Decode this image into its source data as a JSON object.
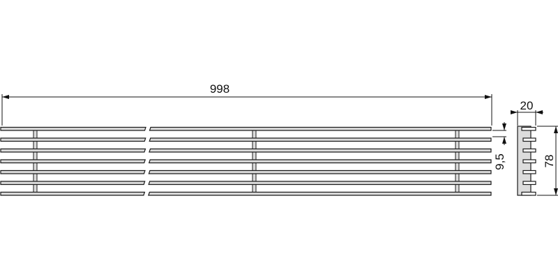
{
  "drawing": {
    "dimensions": {
      "length": "998",
      "width": "20",
      "height": "78",
      "pitch": "9,5"
    },
    "bar_count": 7,
    "colors": {
      "line": "#1a1a1a",
      "fill": "#dcdcdc"
    }
  }
}
